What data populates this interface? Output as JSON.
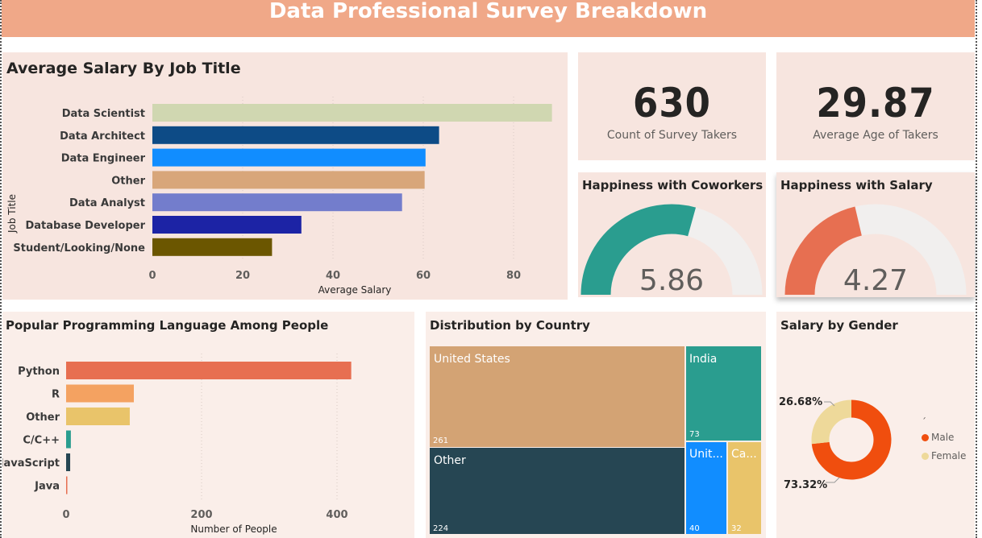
{
  "header": {
    "title": "Data  Professional Survey Breakdown"
  },
  "salary_by_job": {
    "title": "Average Salary By Job Title",
    "ylabel": "Job Title",
    "xlabel": "Average Salary"
  },
  "kpis": [
    {
      "value": "630",
      "label": "Count of Survey Takers"
    },
    {
      "value": "29.87",
      "label": "Average Age of Takers"
    }
  ],
  "gauges": [
    {
      "title": "Happiness with Coworkers",
      "value": "5.86",
      "fraction": 0.586,
      "color": "#2a9d8f",
      "track": "#f1efee"
    },
    {
      "title": "Happiness with Salary",
      "value": "4.27",
      "fraction": 0.427,
      "color": "#e76f51",
      "track": "#f1efee"
    }
  ],
  "languages": {
    "title": "Popular Programming Language Among People",
    "xlabel": "Number of People"
  },
  "country": {
    "title": "Distribution by Country",
    "tiles": [
      {
        "label": "United States",
        "value": "261",
        "color": "#d3a374"
      },
      {
        "label": "Other",
        "value": "224",
        "color": "#264653"
      },
      {
        "label": "India",
        "value": "73",
        "color": "#2a9d8f"
      },
      {
        "label": "Unit...",
        "value": "40",
        "color": "#118dff"
      },
      {
        "label": "Ca...",
        "value": "32",
        "color": "#e9c46a"
      }
    ]
  },
  "gender": {
    "title": "Salary by Gender",
    "legend_title": "´",
    "slices": [
      {
        "label": "Male",
        "pct_label": "73.32%",
        "value": 73.32,
        "color": "#f04e0e"
      },
      {
        "label": "Female",
        "pct_label": "26.68%",
        "value": 26.68,
        "color": "#eed99a"
      }
    ]
  },
  "chart_data": [
    {
      "type": "bar",
      "title": "Average Salary By Job Title",
      "xlabel": "Average Salary",
      "ylabel": "Job Title",
      "categories": [
        "Data Scientist",
        "Data Architect",
        "Data Engineer",
        "Other",
        "Data Analyst",
        "Database Developer",
        "Student/Looking/None"
      ],
      "values": [
        88.5,
        63.5,
        60.5,
        60.3,
        55.3,
        33.0,
        26.5
      ],
      "colors": [
        "#d0d7b1",
        "#0d4b86",
        "#118dff",
        "#d8a67a",
        "#737dcc",
        "#1c23a5",
        "#6b5600"
      ],
      "ticks": [
        "0",
        "20",
        "40",
        "60",
        "80"
      ],
      "tick_values": [
        0,
        20,
        40,
        60,
        80
      ],
      "xlim": [
        0,
        90
      ],
      "orientation": "horizontal"
    },
    {
      "type": "bar",
      "title": "Popular Programming Language Among People",
      "xlabel": "Number of People",
      "categories": [
        "Python",
        "R",
        "Other",
        "C/C++",
        "JavaScript",
        "Java"
      ],
      "values": [
        421,
        100,
        94,
        7,
        6,
        1
      ],
      "colors": [
        "#e76f51",
        "#f4a261",
        "#e9c46a",
        "#2a9d8f",
        "#264653",
        "#e76f51"
      ],
      "ticks": [
        "0",
        "200",
        "400"
      ],
      "tick_values": [
        0,
        200,
        400
      ],
      "xlim": [
        0,
        430
      ],
      "orientation": "horizontal"
    },
    {
      "type": "pie",
      "title": "Salary by Gender",
      "categories": [
        "Male",
        "Female"
      ],
      "values": [
        73.32,
        26.68
      ]
    }
  ]
}
